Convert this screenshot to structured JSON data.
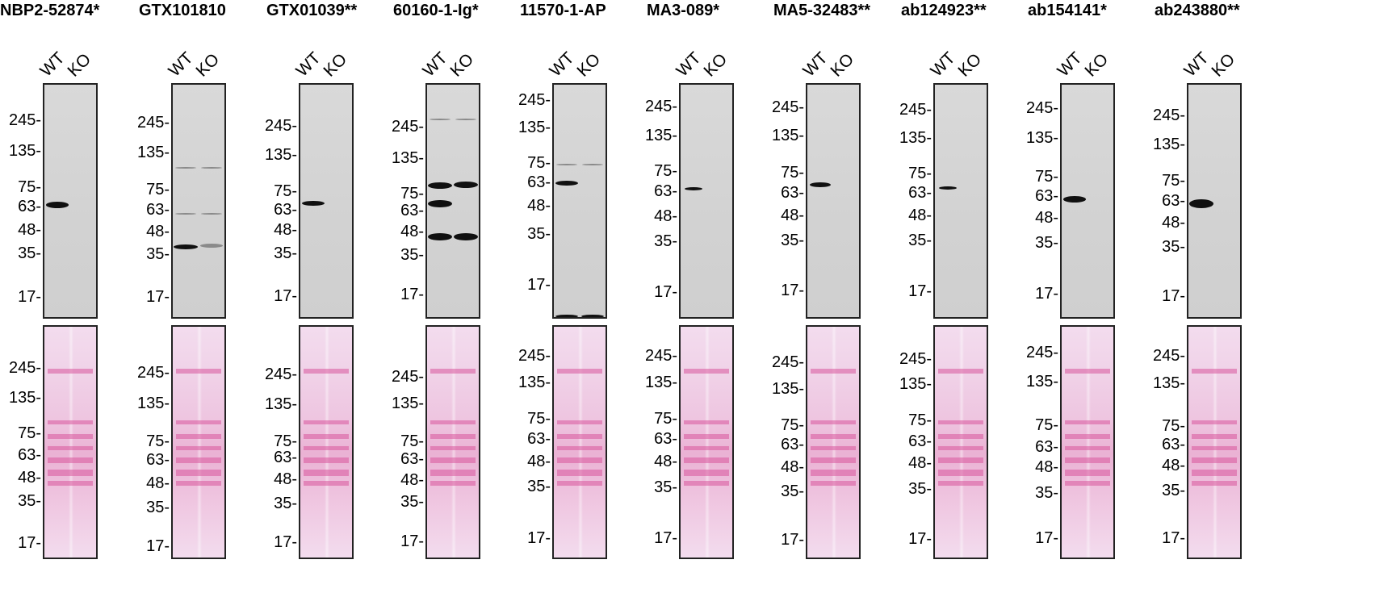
{
  "lanes": [
    "WT",
    "KO"
  ],
  "antibodies": [
    {
      "name": "NBP2-52874*"
    },
    {
      "name": "GTX101810"
    },
    {
      "name": "GTX01039**"
    },
    {
      "name": "60160-1-Ig*"
    },
    {
      "name": "11570-1-AP"
    },
    {
      "name": "MA3-089*"
    },
    {
      "name": "MA5-32483**"
    },
    {
      "name": "ab124923**"
    },
    {
      "name": "ab154141*"
    },
    {
      "name": "ab243880**"
    }
  ],
  "wb_markers": [
    "245-",
    "135-",
    "75-",
    "63-",
    "48-",
    "35-",
    "17-"
  ],
  "ponceau_markers": [
    "245-",
    "135-",
    "75-",
    "63-",
    "48-",
    "35-",
    "17-"
  ],
  "colors": {
    "blot_border": "#222222",
    "band": "#101010",
    "ponceau": "#d9559d"
  }
}
